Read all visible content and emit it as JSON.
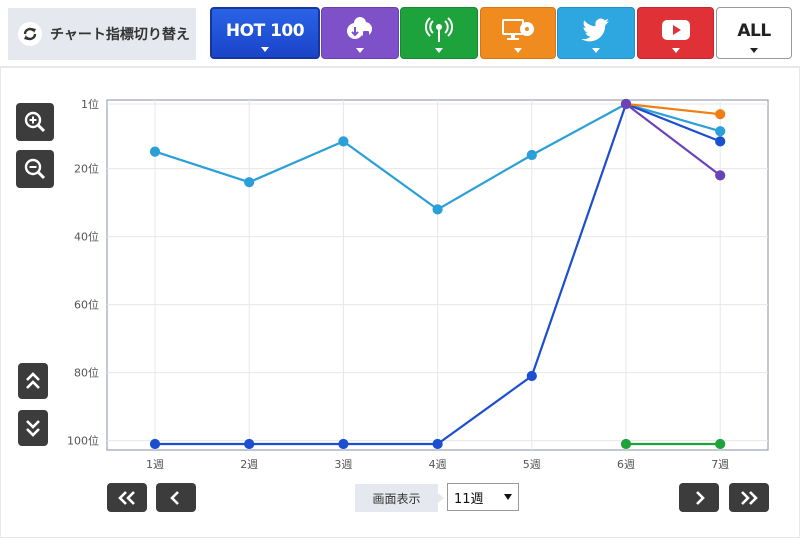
{
  "header": {
    "switch_label": "チャート指標切り替え",
    "tabs": [
      {
        "id": "hot100",
        "label": "HOT 100",
        "icon": "",
        "color": "#1f4fd6"
      },
      {
        "id": "download",
        "label": "",
        "icon": "download-cloud-icon",
        "color": "#7f51c9"
      },
      {
        "id": "radio",
        "label": "",
        "icon": "radio-antenna-icon",
        "color": "#1ea23c"
      },
      {
        "id": "tv",
        "label": "",
        "icon": "tv-disc-icon",
        "color": "#f08b1f"
      },
      {
        "id": "twitter",
        "label": "",
        "icon": "twitter-bird-icon",
        "color": "#2ea7e0"
      },
      {
        "id": "youtube",
        "label": "",
        "icon": "youtube-play-icon",
        "color": "#e03236"
      },
      {
        "id": "all",
        "label": "ALL",
        "icon": "",
        "color": "#ffffff"
      }
    ]
  },
  "footer": {
    "view_label": "画面表示",
    "selected_range": "11週"
  },
  "chart_data": {
    "type": "line",
    "title": "",
    "xlabel": "",
    "ylabel": "",
    "categories": [
      "1週",
      "2週",
      "3週",
      "4週",
      "5週",
      "6週",
      "7週"
    ],
    "y_ticks": [
      {
        "value": 1,
        "label": "1位"
      },
      {
        "value": 20,
        "label": "20位"
      },
      {
        "value": 40,
        "label": "40位"
      },
      {
        "value": 60,
        "label": "60位"
      },
      {
        "value": 80,
        "label": "80位"
      },
      {
        "value": 100,
        "label": "100位"
      }
    ],
    "ylim": [
      1,
      101
    ],
    "y_inverted": true,
    "grid": true,
    "series": [
      {
        "color": "#2a9fd8",
        "values": [
          15,
          24,
          12,
          32,
          16,
          1,
          9
        ]
      },
      {
        "color": "#1c4fcf",
        "values": [
          101,
          101,
          101,
          101,
          81,
          1,
          12
        ]
      },
      {
        "color": "#1ea23c",
        "values": [
          null,
          null,
          null,
          null,
          null,
          101,
          101
        ]
      },
      {
        "color": "#f07f12",
        "values": [
          null,
          null,
          null,
          null,
          null,
          1,
          4
        ]
      },
      {
        "color": "#6b43b8",
        "values": [
          null,
          null,
          null,
          null,
          null,
          1,
          22
        ]
      }
    ]
  }
}
